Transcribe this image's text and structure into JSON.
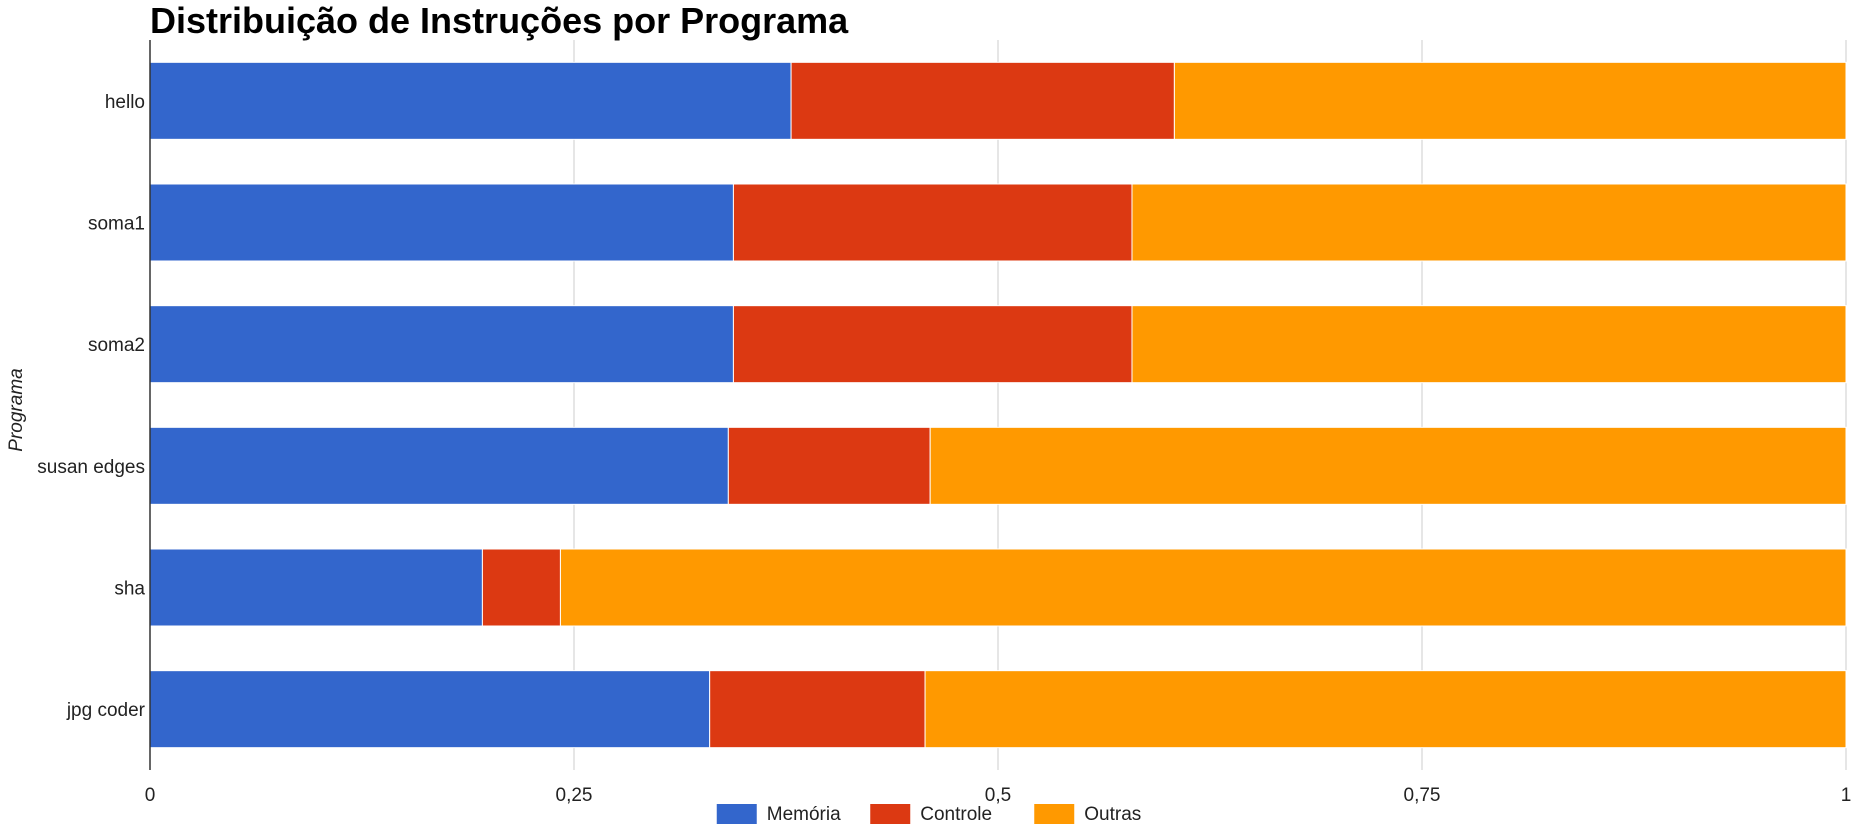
{
  "chart_data": {
    "type": "bar",
    "orientation": "horizontal",
    "stacked": true,
    "title": "Distribuição de Instruções por Programa",
    "ylabel": "Programa",
    "xlabel": "",
    "categories": [
      "hello",
      "soma1",
      "soma2",
      "susan edges",
      "sha",
      "jpg coder"
    ],
    "series": [
      {
        "name": "Memória",
        "color": "#3366cc",
        "values": [
          0.378,
          0.344,
          0.344,
          0.341,
          0.196,
          0.33
        ]
      },
      {
        "name": "Controle",
        "color": "#dc3912",
        "values": [
          0.226,
          0.235,
          0.235,
          0.119,
          0.046,
          0.127
        ]
      },
      {
        "name": "Outras",
        "color": "#ff9900",
        "values": [
          0.396,
          0.421,
          0.421,
          0.54,
          0.758,
          0.543
        ]
      }
    ],
    "xlim": [
      0,
      1
    ],
    "xticks": [
      0,
      0.25,
      0.5,
      0.75,
      1
    ],
    "xtick_labels": [
      "0",
      "0,25",
      "0,5",
      "0,75",
      "1"
    ],
    "grid": true,
    "legend_position": "bottom"
  }
}
